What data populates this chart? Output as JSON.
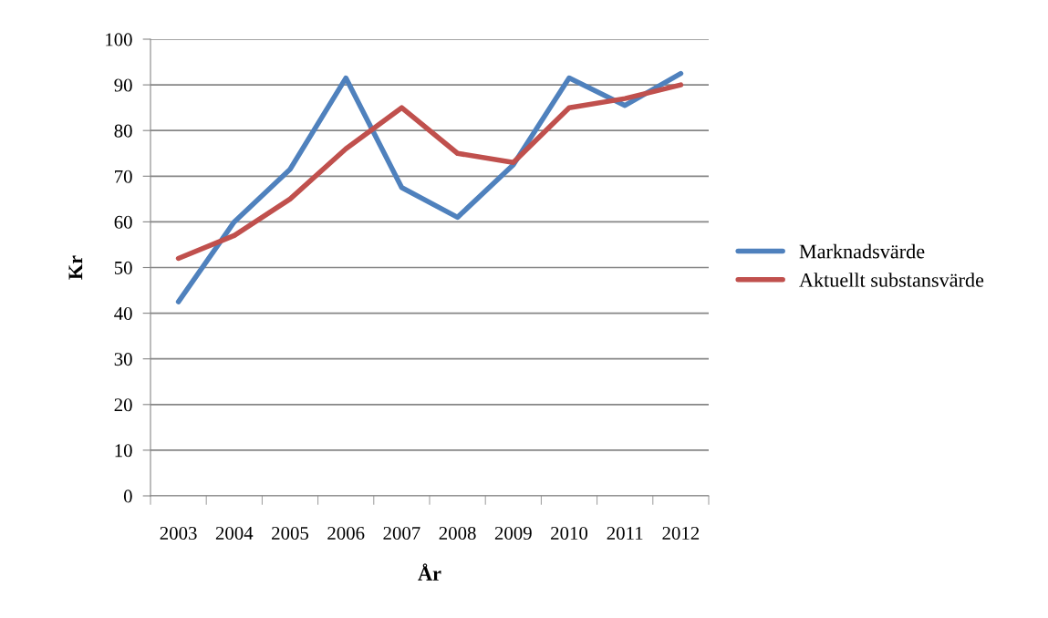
{
  "chart_data": {
    "type": "line",
    "xlabel": "År",
    "ylabel": "Kr",
    "categories": [
      "2003",
      "2004",
      "2005",
      "2006",
      "2007",
      "2008",
      "2009",
      "2010",
      "2011",
      "2012"
    ],
    "series": [
      {
        "name": "Marknadsvärde",
        "color": "#4f81bd",
        "values": [
          42.5,
          60,
          71.5,
          91.5,
          67.5,
          61,
          72.5,
          91.5,
          85.5,
          92.5
        ]
      },
      {
        "name": "Aktuellt substansvärde",
        "color": "#c0504d",
        "values": [
          52,
          57,
          65,
          76,
          85,
          75,
          73,
          85,
          87,
          90
        ]
      }
    ],
    "ylim": [
      0,
      100
    ],
    "yticks": [
      0,
      10,
      20,
      30,
      40,
      50,
      60,
      70,
      80,
      90,
      100
    ],
    "grid": "y",
    "legend": "right",
    "marker": "none",
    "line_style": "solid"
  }
}
